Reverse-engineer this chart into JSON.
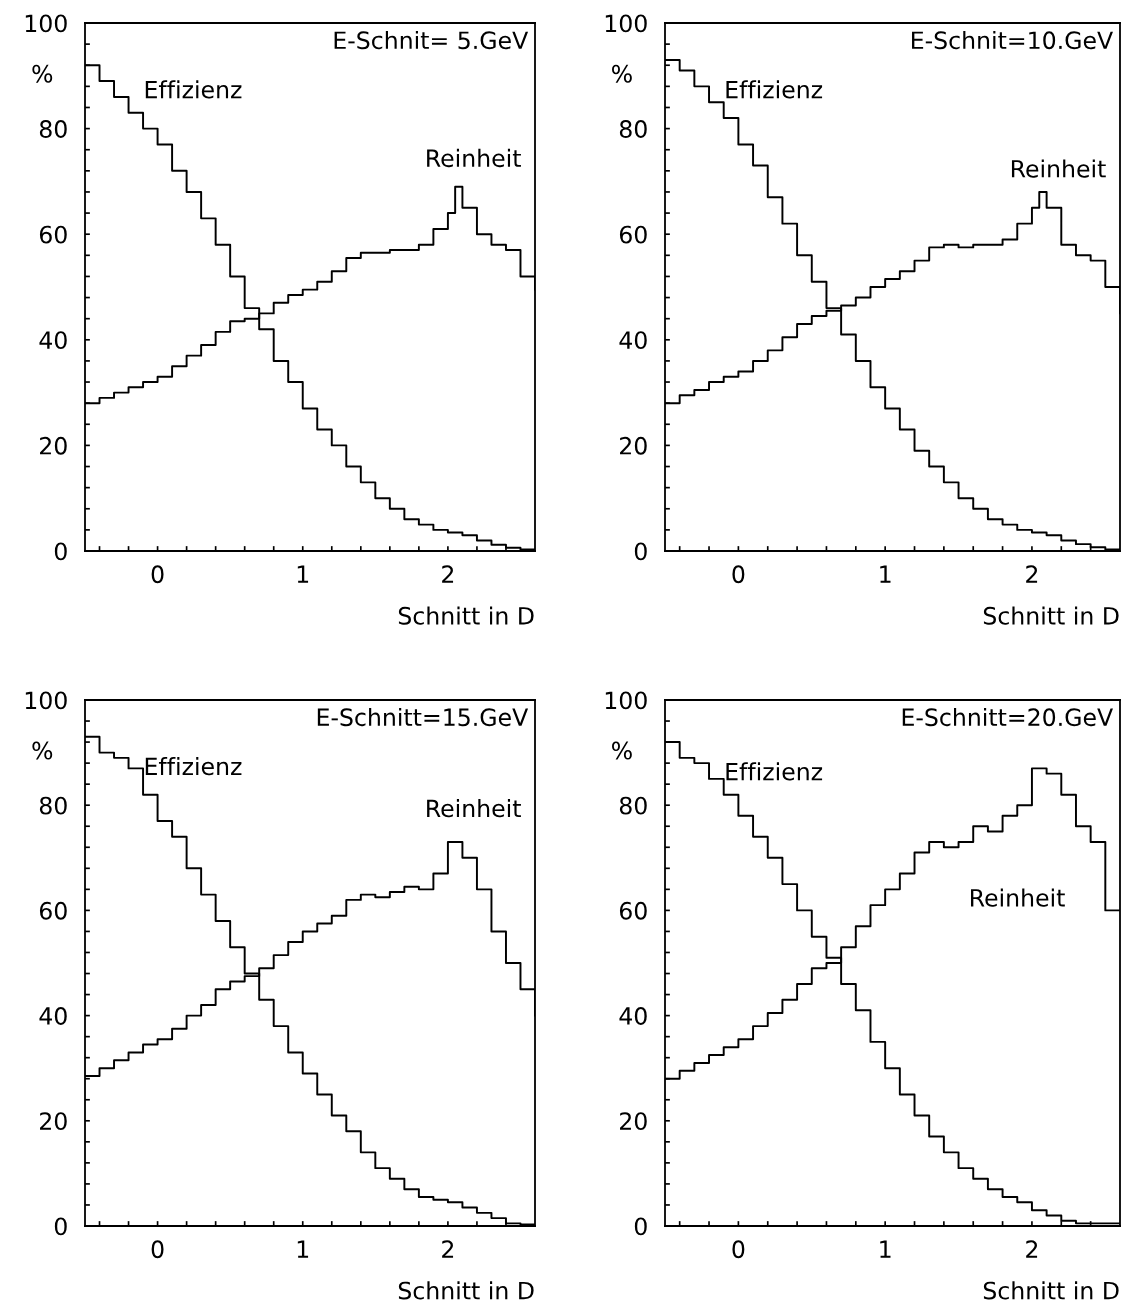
{
  "chart_data": [
    {
      "type": "step",
      "ylabel": "%",
      "xlabel": "Schnitt in D",
      "annotations": [
        "E-Schnit= 5.GeV"
      ],
      "xlim": [
        -0.5,
        2.6
      ],
      "ylim": [
        0,
        100
      ],
      "xticks": [
        {
          "value": -0.4,
          "label": null
        },
        {
          "value": -0.2,
          "label": null
        },
        0,
        {
          "value": 0.2,
          "label": null
        },
        {
          "value": 0.4,
          "label": null
        },
        {
          "value": 0.6,
          "label": null
        },
        {
          "value": 0.8,
          "label": null
        },
        1,
        {
          "value": 1.2,
          "label": null
        },
        {
          "value": 1.4,
          "label": null
        },
        {
          "value": 1.6,
          "label": null
        },
        {
          "value": 1.8,
          "label": null
        },
        2,
        {
          "value": 2.2,
          "label": null
        },
        {
          "value": 2.4,
          "label": null
        }
      ],
      "yticks": [
        0,
        {
          "value": 4,
          "label": null
        },
        {
          "value": 8,
          "label": null
        },
        {
          "value": 12,
          "label": null
        },
        {
          "value": 16,
          "label": null
        },
        20,
        {
          "value": 24,
          "label": null
        },
        {
          "value": 28,
          "label": null
        },
        {
          "value": 32,
          "label": null
        },
        {
          "value": 36,
          "label": null
        },
        40,
        {
          "value": 44,
          "label": null
        },
        {
          "value": 48,
          "label": null
        },
        {
          "value": 52,
          "label": null
        },
        {
          "value": 56,
          "label": null
        },
        60,
        {
          "value": 64,
          "label": null
        },
        {
          "value": 68,
          "label": null
        },
        {
          "value": 72,
          "label": null
        },
        {
          "value": 76,
          "label": null
        },
        80,
        {
          "value": 84,
          "label": null
        },
        {
          "value": 88,
          "label": null
        },
        {
          "value": 92,
          "label": null
        },
        {
          "value": 96,
          "label": null
        },
        100
      ],
      "series": [
        {
          "name": "Effizienz",
          "color": "#000000",
          "x": [
            -0.5,
            -0.4,
            -0.3,
            -0.2,
            -0.1,
            0,
            0.1,
            0.2,
            0.3,
            0.4,
            0.5,
            0.6,
            0.7,
            0.8,
            0.9,
            1.0,
            1.1,
            1.2,
            1.3,
            1.4,
            1.5,
            1.6,
            1.7,
            1.8,
            1.9,
            2.0,
            2.1,
            2.2,
            2.3,
            2.4,
            2.5,
            2.6
          ],
          "values": [
            92,
            89,
            86,
            83,
            80,
            77,
            72,
            68,
            63,
            58,
            52,
            46,
            42,
            36,
            32,
            27,
            23,
            20,
            16,
            13,
            10,
            8,
            6,
            5,
            4,
            3.5,
            3,
            2,
            1.2,
            0.6,
            0.3,
            0.3
          ]
        },
        {
          "name": "Reinheit",
          "color": "#000000",
          "x": [
            -0.5,
            -0.4,
            -0.3,
            -0.2,
            -0.1,
            0,
            0.1,
            0.2,
            0.3,
            0.4,
            0.5,
            0.6,
            0.7,
            0.8,
            0.9,
            1.0,
            1.1,
            1.2,
            1.3,
            1.4,
            1.5,
            1.6,
            1.7,
            1.8,
            1.9,
            2.0,
            2.05,
            2.1,
            2.2,
            2.3,
            2.4,
            2.5,
            2.6
          ],
          "values": [
            28,
            29,
            30,
            31,
            32,
            33,
            35,
            37,
            39,
            41.5,
            43.5,
            44,
            45,
            47,
            48.5,
            49.5,
            51,
            53,
            55.5,
            56.5,
            56.5,
            57,
            57,
            58,
            61,
            64,
            69,
            65,
            60,
            58,
            57,
            52,
            49.5
          ]
        }
      ]
    },
    {
      "type": "step",
      "ylabel": "%",
      "xlabel": "Schnitt in D",
      "annotations": [
        "E-Schnit=10.GeV"
      ],
      "xlim": [
        -0.5,
        2.6
      ],
      "ylim": [
        0,
        100
      ],
      "xticks": [
        {
          "value": -0.4,
          "label": null
        },
        {
          "value": -0.2,
          "label": null
        },
        0,
        {
          "value": 0.2,
          "label": null
        },
        {
          "value": 0.4,
          "label": null
        },
        {
          "value": 0.6,
          "label": null
        },
        {
          "value": 0.8,
          "label": null
        },
        1,
        {
          "value": 1.2,
          "label": null
        },
        {
          "value": 1.4,
          "label": null
        },
        {
          "value": 1.6,
          "label": null
        },
        {
          "value": 1.8,
          "label": null
        },
        2,
        {
          "value": 2.2,
          "label": null
        },
        {
          "value": 2.4,
          "label": null
        }
      ],
      "yticks": [
        0,
        {
          "value": 4,
          "label": null
        },
        {
          "value": 8,
          "label": null
        },
        {
          "value": 12,
          "label": null
        },
        {
          "value": 16,
          "label": null
        },
        20,
        {
          "value": 24,
          "label": null
        },
        {
          "value": 28,
          "label": null
        },
        {
          "value": 32,
          "label": null
        },
        {
          "value": 36,
          "label": null
        },
        40,
        {
          "value": 44,
          "label": null
        },
        {
          "value": 48,
          "label": null
        },
        {
          "value": 52,
          "label": null
        },
        {
          "value": 56,
          "label": null
        },
        60,
        {
          "value": 64,
          "label": null
        },
        {
          "value": 68,
          "label": null
        },
        {
          "value": 72,
          "label": null
        },
        {
          "value": 76,
          "label": null
        },
        80,
        {
          "value": 84,
          "label": null
        },
        {
          "value": 88,
          "label": null
        },
        {
          "value": 92,
          "label": null
        },
        {
          "value": 96,
          "label": null
        },
        100
      ],
      "series": [
        {
          "name": "Effizienz",
          "color": "#000000",
          "x": [
            -0.5,
            -0.4,
            -0.3,
            -0.2,
            -0.1,
            0,
            0.1,
            0.2,
            0.3,
            0.4,
            0.5,
            0.6,
            0.7,
            0.8,
            0.9,
            1.0,
            1.1,
            1.2,
            1.3,
            1.4,
            1.5,
            1.6,
            1.7,
            1.8,
            1.9,
            2.0,
            2.1,
            2.2,
            2.3,
            2.4,
            2.5,
            2.6
          ],
          "values": [
            93,
            91,
            88,
            85,
            82,
            77,
            73,
            67,
            62,
            56,
            51,
            46,
            41,
            36,
            31,
            27,
            23,
            19,
            16,
            13,
            10,
            8,
            6,
            5,
            4,
            3.5,
            3,
            2,
            1.3,
            0.7,
            0.3,
            0.3
          ]
        },
        {
          "name": "Reinheit",
          "color": "#000000",
          "x": [
            -0.5,
            -0.4,
            -0.3,
            -0.2,
            -0.1,
            0,
            0.1,
            0.2,
            0.3,
            0.4,
            0.5,
            0.6,
            0.7,
            0.8,
            0.9,
            1.0,
            1.1,
            1.2,
            1.3,
            1.4,
            1.5,
            1.6,
            1.7,
            1.8,
            1.9,
            2.0,
            2.05,
            2.1,
            2.2,
            2.3,
            2.4,
            2.5,
            2.6
          ],
          "values": [
            28,
            29.5,
            30.5,
            32,
            33,
            34,
            36,
            38,
            40.5,
            43,
            44.5,
            45.5,
            46.5,
            48,
            50,
            51.5,
            53,
            55,
            57.5,
            58,
            57.5,
            58,
            58,
            59,
            62,
            65,
            68,
            65,
            58,
            56,
            55,
            50,
            45
          ]
        }
      ]
    },
    {
      "type": "step",
      "ylabel": "%",
      "xlabel": "Schnitt in D",
      "annotations": [
        "E-Schnitt=15.GeV"
      ],
      "xlim": [
        -0.5,
        2.6
      ],
      "ylim": [
        0,
        100
      ],
      "xticks": [
        {
          "value": -0.4,
          "label": null
        },
        {
          "value": -0.2,
          "label": null
        },
        0,
        {
          "value": 0.2,
          "label": null
        },
        {
          "value": 0.4,
          "label": null
        },
        {
          "value": 0.6,
          "label": null
        },
        {
          "value": 0.8,
          "label": null
        },
        1,
        {
          "value": 1.2,
          "label": null
        },
        {
          "value": 1.4,
          "label": null
        },
        {
          "value": 1.6,
          "label": null
        },
        {
          "value": 1.8,
          "label": null
        },
        2,
        {
          "value": 2.2,
          "label": null
        },
        {
          "value": 2.4,
          "label": null
        }
      ],
      "yticks": [
        0,
        {
          "value": 4,
          "label": null
        },
        {
          "value": 8,
          "label": null
        },
        {
          "value": 12,
          "label": null
        },
        {
          "value": 16,
          "label": null
        },
        20,
        {
          "value": 24,
          "label": null
        },
        {
          "value": 28,
          "label": null
        },
        {
          "value": 32,
          "label": null
        },
        {
          "value": 36,
          "label": null
        },
        40,
        {
          "value": 44,
          "label": null
        },
        {
          "value": 48,
          "label": null
        },
        {
          "value": 52,
          "label": null
        },
        {
          "value": 56,
          "label": null
        },
        60,
        {
          "value": 64,
          "label": null
        },
        {
          "value": 68,
          "label": null
        },
        {
          "value": 72,
          "label": null
        },
        {
          "value": 76,
          "label": null
        },
        80,
        {
          "value": 84,
          "label": null
        },
        {
          "value": 88,
          "label": null
        },
        {
          "value": 92,
          "label": null
        },
        {
          "value": 96,
          "label": null
        },
        100
      ],
      "series": [
        {
          "name": "Effizienz",
          "color": "#000000",
          "x": [
            -0.5,
            -0.4,
            -0.3,
            -0.2,
            -0.1,
            0,
            0.1,
            0.2,
            0.3,
            0.4,
            0.5,
            0.6,
            0.7,
            0.8,
            0.9,
            1.0,
            1.1,
            1.2,
            1.3,
            1.4,
            1.5,
            1.6,
            1.7,
            1.8,
            1.9,
            2.0,
            2.1,
            2.2,
            2.3,
            2.4,
            2.5,
            2.6
          ],
          "values": [
            93,
            90,
            89,
            87,
            82,
            77,
            74,
            68,
            63,
            58,
            53,
            48,
            43,
            38,
            33,
            29,
            25,
            21,
            18,
            14,
            11,
            9,
            7,
            5.5,
            5,
            4.5,
            3.5,
            2.5,
            1.5,
            0.5,
            0.3,
            0.3
          ]
        },
        {
          "name": "Reinheit",
          "color": "#000000",
          "x": [
            -0.5,
            -0.4,
            -0.3,
            -0.2,
            -0.1,
            0,
            0.1,
            0.2,
            0.3,
            0.4,
            0.5,
            0.6,
            0.7,
            0.8,
            0.9,
            1.0,
            1.1,
            1.2,
            1.3,
            1.4,
            1.5,
            1.6,
            1.7,
            1.8,
            1.9,
            2.0,
            2.1,
            2.2,
            2.3,
            2.4,
            2.5,
            2.6
          ],
          "values": [
            28.5,
            30,
            31.5,
            33,
            34.5,
            35.5,
            37.5,
            40,
            42,
            45,
            46.5,
            47.5,
            49,
            51.5,
            54,
            56,
            57.5,
            59,
            62,
            63,
            62.5,
            63.5,
            64.5,
            64,
            67,
            73,
            70,
            64,
            56,
            50,
            45,
            40
          ]
        }
      ]
    },
    {
      "type": "step",
      "ylabel": "%",
      "xlabel": "Schnitt in D",
      "annotations": [
        "E-Schnitt=20.GeV"
      ],
      "xlim": [
        -0.5,
        2.6
      ],
      "ylim": [
        0,
        100
      ],
      "xticks": [
        {
          "value": -0.4,
          "label": null
        },
        {
          "value": -0.2,
          "label": null
        },
        0,
        {
          "value": 0.2,
          "label": null
        },
        {
          "value": 0.4,
          "label": null
        },
        {
          "value": 0.6,
          "label": null
        },
        {
          "value": 0.8,
          "label": null
        },
        1,
        {
          "value": 1.2,
          "label": null
        },
        {
          "value": 1.4,
          "label": null
        },
        {
          "value": 1.6,
          "label": null
        },
        {
          "value": 1.8,
          "label": null
        },
        2,
        {
          "value": 2.2,
          "label": null
        },
        {
          "value": 2.4,
          "label": null
        }
      ],
      "yticks": [
        0,
        {
          "value": 4,
          "label": null
        },
        {
          "value": 8,
          "label": null
        },
        {
          "value": 12,
          "label": null
        },
        {
          "value": 16,
          "label": null
        },
        20,
        {
          "value": 24,
          "label": null
        },
        {
          "value": 28,
          "label": null
        },
        {
          "value": 32,
          "label": null
        },
        {
          "value": 36,
          "label": null
        },
        40,
        {
          "value": 44,
          "label": null
        },
        {
          "value": 48,
          "label": null
        },
        {
          "value": 52,
          "label": null
        },
        {
          "value": 56,
          "label": null
        },
        60,
        {
          "value": 64,
          "label": null
        },
        {
          "value": 68,
          "label": null
        },
        {
          "value": 72,
          "label": null
        },
        {
          "value": 76,
          "label": null
        },
        80,
        {
          "value": 84,
          "label": null
        },
        {
          "value": 88,
          "label": null
        },
        {
          "value": 92,
          "label": null
        },
        {
          "value": 96,
          "label": null
        },
        100
      ],
      "series": [
        {
          "name": "Effizienz",
          "color": "#000000",
          "x": [
            -0.5,
            -0.4,
            -0.3,
            -0.2,
            -0.1,
            0,
            0.1,
            0.2,
            0.3,
            0.4,
            0.5,
            0.6,
            0.7,
            0.8,
            0.9,
            1.0,
            1.1,
            1.2,
            1.3,
            1.4,
            1.5,
            1.6,
            1.7,
            1.8,
            1.9,
            2.0,
            2.1,
            2.2,
            2.3,
            2.4,
            2.5,
            2.6
          ],
          "values": [
            92,
            89,
            88,
            85,
            82,
            78,
            74,
            70,
            65,
            60,
            55,
            51,
            46,
            41,
            35,
            30,
            25,
            21,
            17,
            14,
            11,
            9,
            7,
            5.5,
            4.5,
            3,
            2,
            1,
            0.5,
            0.5,
            0.5,
            0.5
          ]
        },
        {
          "name": "Reinheit",
          "color": "#000000",
          "x": [
            -0.5,
            -0.4,
            -0.3,
            -0.2,
            -0.1,
            0,
            0.1,
            0.2,
            0.3,
            0.4,
            0.5,
            0.6,
            0.7,
            0.8,
            0.9,
            1.0,
            1.1,
            1.2,
            1.3,
            1.4,
            1.5,
            1.6,
            1.7,
            1.8,
            1.9,
            2.0,
            2.1,
            2.2,
            2.3,
            2.4,
            2.5,
            2.6
          ],
          "values": [
            28,
            29.5,
            31,
            32.5,
            34,
            35.5,
            38,
            40.5,
            43,
            46,
            49,
            50,
            53,
            57,
            61,
            64,
            67,
            71,
            73,
            72,
            73,
            76,
            75,
            78,
            80,
            87,
            86,
            82,
            76,
            73,
            60,
            60
          ]
        }
      ]
    }
  ]
}
